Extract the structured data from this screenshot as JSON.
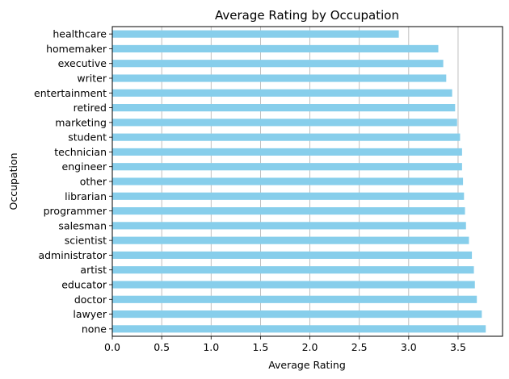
{
  "chart_data": {
    "type": "bar",
    "orientation": "horizontal",
    "title": "Average Rating by Occupation",
    "xlabel": "Average Rating",
    "ylabel": "Occupation",
    "xlim": [
      0,
      3.95
    ],
    "xticks": [
      "0.0",
      "0.5",
      "1.0",
      "1.5",
      "2.0",
      "2.5",
      "3.0",
      "3.5"
    ],
    "grid": "x",
    "bar_color": "#87CEEB",
    "grid_color": "#b0b0b0",
    "categories": [
      "healthcare",
      "homemaker",
      "executive",
      "writer",
      "entertainment",
      "retired",
      "marketing",
      "student",
      "technician",
      "engineer",
      "other",
      "librarian",
      "programmer",
      "salesman",
      "scientist",
      "administrator",
      "artist",
      "educator",
      "doctor",
      "lawyer",
      "none"
    ],
    "values": [
      2.9,
      3.3,
      3.35,
      3.38,
      3.44,
      3.47,
      3.49,
      3.52,
      3.54,
      3.54,
      3.55,
      3.56,
      3.57,
      3.58,
      3.61,
      3.64,
      3.66,
      3.67,
      3.69,
      3.74,
      3.78
    ]
  }
}
